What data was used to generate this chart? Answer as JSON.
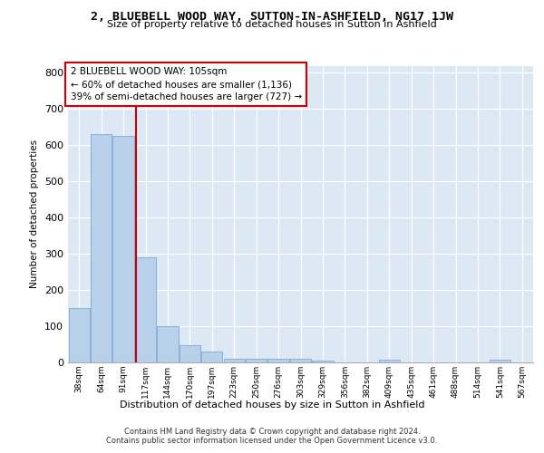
{
  "title": "2, BLUEBELL WOOD WAY, SUTTON-IN-ASHFIELD, NG17 1JW",
  "subtitle": "Size of property relative to detached houses in Sutton in Ashfield",
  "xlabel": "Distribution of detached houses by size in Sutton in Ashfield",
  "ylabel": "Number of detached properties",
  "footer_line1": "Contains HM Land Registry data © Crown copyright and database right 2024.",
  "footer_line2": "Contains public sector information licensed under the Open Government Licence v3.0.",
  "annotation_line1": "2 BLUEBELL WOOD WAY: 105sqm",
  "annotation_line2": "← 60% of detached houses are smaller (1,136)",
  "annotation_line3": "39% of semi-detached houses are larger (727) →",
  "bar_labels": [
    "38sqm",
    "64sqm",
    "91sqm",
    "117sqm",
    "144sqm",
    "170sqm",
    "197sqm",
    "223sqm",
    "250sqm",
    "276sqm",
    "303sqm",
    "329sqm",
    "356sqm",
    "382sqm",
    "409sqm",
    "435sqm",
    "461sqm",
    "488sqm",
    "514sqm",
    "541sqm",
    "567sqm"
  ],
  "bar_values": [
    150,
    630,
    625,
    290,
    100,
    48,
    30,
    10,
    10,
    10,
    10,
    5,
    0,
    0,
    7,
    0,
    0,
    0,
    0,
    7,
    0
  ],
  "bar_color": "#b8d0ea",
  "bar_edge_color": "#8ab0d8",
  "vline_x": 2.55,
  "vline_color": "#cc0000",
  "annotation_box_color": "#cc0000",
  "fig_background": "#ffffff",
  "plot_background": "#dde8f5",
  "ylim": [
    0,
    820
  ],
  "yticks": [
    0,
    100,
    200,
    300,
    400,
    500,
    600,
    700,
    800
  ]
}
